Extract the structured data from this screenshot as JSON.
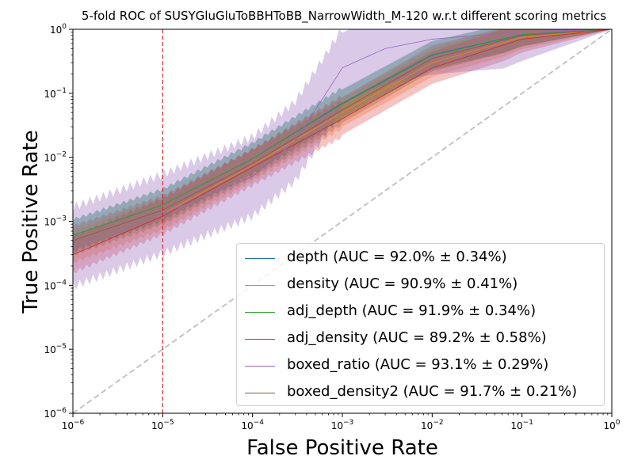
{
  "chart_data": {
    "type": "line",
    "title": "5-fold ROC of SUSYGluGluToBBHToBB_NarrowWidth_M-120 w.r.t different scoring metrics",
    "xlabel": "False Positive Rate",
    "ylabel": "True Positive Rate",
    "xscale": "log",
    "yscale": "log",
    "xlim": [
      1e-06,
      1
    ],
    "ylim": [
      1e-06,
      1
    ],
    "x_ticks": [
      "10^-6",
      "10^-5",
      "10^-4",
      "10^-3",
      "10^-2",
      "10^-1",
      "10^0"
    ],
    "y_ticks": [
      "10^-6",
      "10^-5",
      "10^-4",
      "10^-3",
      "10^-2",
      "10^-1",
      "10^0"
    ],
    "reference_line": {
      "style": "dashed",
      "color": "#bfbfbf",
      "points": [
        [
          1e-06,
          1e-06
        ],
        [
          1,
          1
        ]
      ]
    },
    "threshold_line": {
      "x": 1e-05,
      "style": "dashed",
      "color": "#d62728"
    },
    "legend_position": "lower-right",
    "series": [
      {
        "name": "depth (AUC = 92.0% ± 0.34%)",
        "color": "#1f77b4",
        "band": 0.22,
        "points": [
          [
            1e-06,
            0.0006
          ],
          [
            1e-05,
            0.0018
          ],
          [
            0.0001,
            0.0095
          ],
          [
            0.001,
            0.07
          ],
          [
            0.01,
            0.4
          ],
          [
            0.1,
            0.83
          ],
          [
            1,
            1
          ]
        ]
      },
      {
        "name": "density (AUC = 90.9% ± 0.41%)",
        "color": "#ff7f0e",
        "band": 0.22,
        "points": [
          [
            1e-06,
            0.0004
          ],
          [
            1e-05,
            0.0013
          ],
          [
            0.0001,
            0.0075
          ],
          [
            0.001,
            0.05
          ],
          [
            0.01,
            0.3
          ],
          [
            0.1,
            0.75
          ],
          [
            1,
            1
          ]
        ]
      },
      {
        "name": "adj_depth (AUC = 91.9% ± 0.34%)",
        "color": "#2ca02c",
        "band": 0.22,
        "points": [
          [
            1e-06,
            0.0006
          ],
          [
            1e-05,
            0.0018
          ],
          [
            0.0001,
            0.0095
          ],
          [
            0.001,
            0.068
          ],
          [
            0.01,
            0.39
          ],
          [
            0.1,
            0.82
          ],
          [
            1,
            1
          ]
        ]
      },
      {
        "name": "adj_density (AUC = 89.2% ± 0.58%)",
        "color": "#d62728",
        "band": 0.25,
        "points": [
          [
            1e-06,
            0.0003
          ],
          [
            1e-05,
            0.0012
          ],
          [
            0.0001,
            0.007
          ],
          [
            0.001,
            0.04
          ],
          [
            0.01,
            0.25
          ],
          [
            0.1,
            0.7
          ],
          [
            1,
            1
          ]
        ]
      },
      {
        "name": "boxed_ratio (AUC = 93.1% ± 0.29%)",
        "color": "#9467bd",
        "band": 0.55,
        "points": [
          [
            1e-06,
            0.0004
          ],
          [
            1e-05,
            0.0013
          ],
          [
            0.0001,
            0.005
          ],
          [
            0.0003,
            0.018
          ],
          [
            0.001,
            0.25
          ],
          [
            0.003,
            0.5
          ],
          [
            0.01,
            0.7
          ],
          [
            0.1,
            0.92
          ],
          [
            1,
            1
          ]
        ]
      },
      {
        "name": "boxed_density2 (AUC = 91.7% ± 0.21%)",
        "color": "#8c564b",
        "band": 0.2,
        "points": [
          [
            1e-06,
            0.0005
          ],
          [
            1e-05,
            0.0015
          ],
          [
            0.0001,
            0.008
          ],
          [
            0.001,
            0.055
          ],
          [
            0.01,
            0.35
          ],
          [
            0.1,
            0.8
          ],
          [
            1,
            1
          ]
        ]
      }
    ]
  }
}
